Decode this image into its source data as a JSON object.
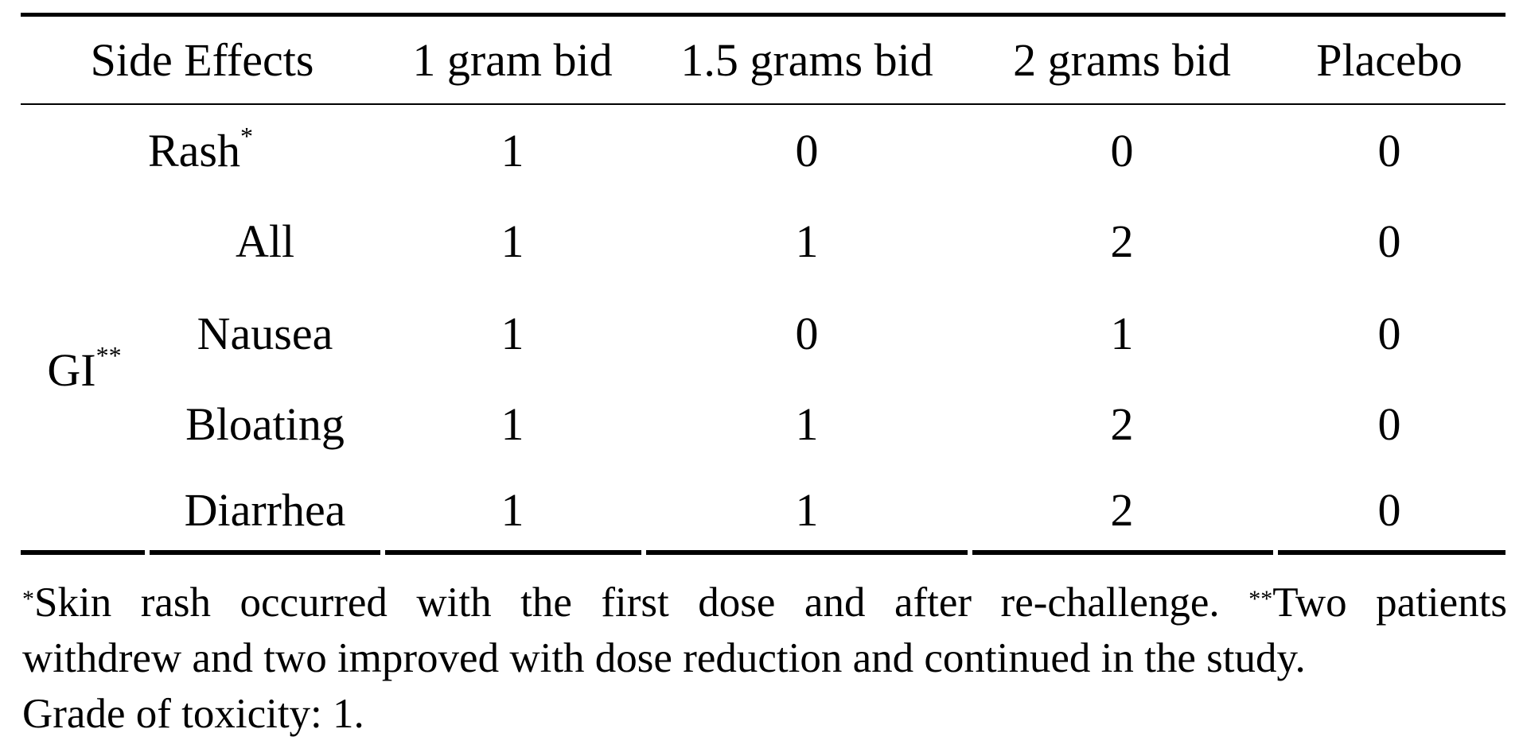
{
  "table": {
    "headers": [
      "Side Effects",
      "1 gram bid",
      "1.5 grams bid",
      "2 grams bid",
      "Placebo"
    ],
    "rows": [
      {
        "group": "",
        "label": "Rash",
        "marker": "*",
        "values": [
          "1",
          "0",
          "0",
          "0"
        ]
      },
      {
        "group": "GI",
        "label": "All",
        "marker": "",
        "values": [
          "1",
          "1",
          "2",
          "0"
        ]
      },
      {
        "group": "GI",
        "label": "Nausea",
        "marker": "",
        "values": [
          "1",
          "0",
          "1",
          "0"
        ]
      },
      {
        "group": "GI",
        "label": "Bloating",
        "marker": "",
        "values": [
          "1",
          "1",
          "2",
          "0"
        ]
      },
      {
        "group": "GI",
        "label": "Diarrhea",
        "marker": "",
        "values": [
          "1",
          "1",
          "2",
          "0"
        ]
      }
    ],
    "group_label": "GI",
    "group_marker": "**"
  },
  "footnote": {
    "marker1": "*",
    "text1": "Skin rash occurred with the first dose and after re-challenge.",
    "marker2": "**",
    "text2": "Two patients",
    "line2": "withdrew and two improved with dose reduction and continued in the study.",
    "line3": "Grade of toxicity: 1."
  }
}
